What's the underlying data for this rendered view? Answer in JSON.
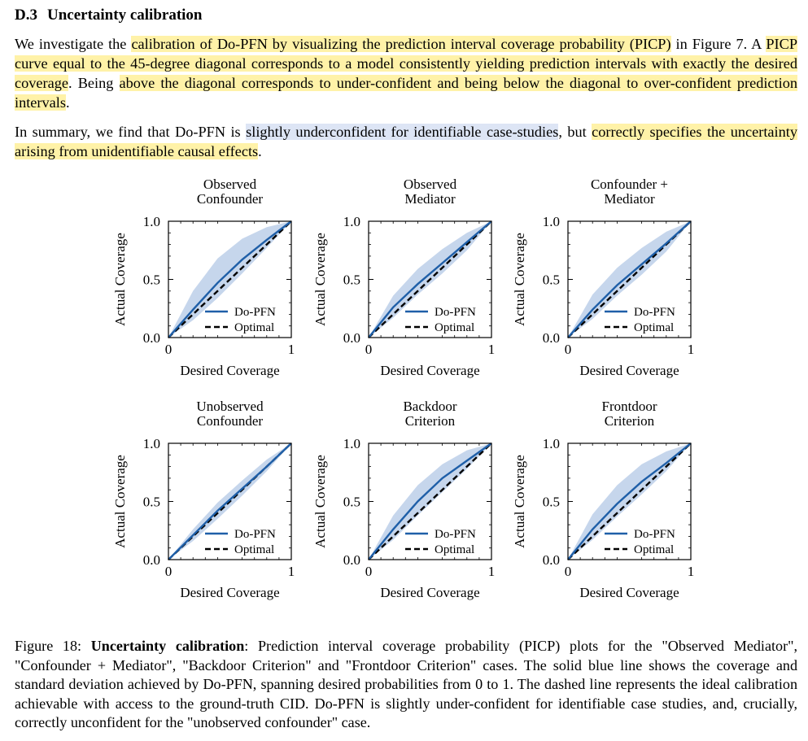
{
  "section": {
    "number": "D.3",
    "title": "Uncertainty calibration"
  },
  "paragraph1": {
    "s1": "We investigate the ",
    "h1": "calibration of Do-PFN by visualizing the prediction interval coverage probability (PICP)",
    "s2": " in Figure 7. A ",
    "h2": "PICP curve equal to the 45-degree diagonal corresponds to a model consistently yielding prediction intervals with exactly the desired coverage",
    "s3": ". Being ",
    "h3": "above the diagonal corresponds to under-confident and being below the diagonal to over-confident prediction intervals",
    "s4": "."
  },
  "paragraph2": {
    "s1": "In summary, we find that Do-PFN is ",
    "h1": "slightly underconfident for identifiable case-studies",
    "s2": ", but ",
    "h2": "correctly specifies the uncertainty arising from unidentifiable causal effects",
    "s3": "."
  },
  "chart_data": [
    {
      "type": "line",
      "title": "Observed\nConfounder",
      "xlabel": "Desired Coverage",
      "ylabel": "Actual Coverage",
      "xlim": [
        0,
        1
      ],
      "ylim": [
        0,
        1
      ],
      "xticks": [
        "0",
        "1"
      ],
      "yticks": [
        "0.0",
        "0.5",
        "1.0"
      ],
      "legend": "lower-right",
      "series": [
        {
          "name": "Do-PFN",
          "color": "#1f5fa8",
          "x": [
            0,
            0.2,
            0.4,
            0.6,
            0.8,
            1.0
          ],
          "y": [
            0,
            0.24,
            0.47,
            0.67,
            0.84,
            1.0
          ],
          "band_lower": [
            0,
            0.15,
            0.34,
            0.55,
            0.77,
            1.0
          ],
          "band_upper": [
            0,
            0.4,
            0.68,
            0.85,
            0.95,
            1.0
          ]
        },
        {
          "name": "Optimal",
          "color": "#000000",
          "style": "dashed",
          "x": [
            0,
            1
          ],
          "y": [
            0,
            1
          ]
        }
      ]
    },
    {
      "type": "line",
      "title": "Observed\nMediator",
      "xlabel": "Desired Coverage",
      "ylabel": "Actual Coverage",
      "xlim": [
        0,
        1
      ],
      "ylim": [
        0,
        1
      ],
      "xticks": [
        "0",
        "1"
      ],
      "yticks": [
        "0.0",
        "0.5",
        "1.0"
      ],
      "legend": "lower-right",
      "series": [
        {
          "name": "Do-PFN",
          "color": "#1f5fa8",
          "x": [
            0,
            0.2,
            0.4,
            0.6,
            0.8,
            1.0
          ],
          "y": [
            0,
            0.26,
            0.46,
            0.64,
            0.82,
            1.0
          ],
          "band_lower": [
            0,
            0.17,
            0.37,
            0.55,
            0.75,
            1.0
          ],
          "band_upper": [
            0,
            0.36,
            0.59,
            0.76,
            0.9,
            1.0
          ]
        },
        {
          "name": "Optimal",
          "color": "#000000",
          "style": "dashed",
          "x": [
            0,
            1
          ],
          "y": [
            0,
            1
          ]
        }
      ]
    },
    {
      "type": "line",
      "title": "Confounder +\nMediator",
      "xlabel": "Desired Coverage",
      "ylabel": "Actual Coverage",
      "xlim": [
        0,
        1
      ],
      "ylim": [
        0,
        1
      ],
      "xticks": [
        "0",
        "1"
      ],
      "yticks": [
        "0.0",
        "0.5",
        "1.0"
      ],
      "legend": "lower-right",
      "series": [
        {
          "name": "Do-PFN",
          "color": "#1f5fa8",
          "x": [
            0,
            0.2,
            0.4,
            0.6,
            0.8,
            1.0
          ],
          "y": [
            0,
            0.24,
            0.45,
            0.63,
            0.81,
            1.0
          ],
          "band_lower": [
            0,
            0.16,
            0.36,
            0.54,
            0.74,
            1.0
          ],
          "band_upper": [
            0,
            0.37,
            0.6,
            0.77,
            0.91,
            1.0
          ]
        },
        {
          "name": "Optimal",
          "color": "#000000",
          "style": "dashed",
          "x": [
            0,
            1
          ],
          "y": [
            0,
            1
          ]
        }
      ]
    },
    {
      "type": "line",
      "title": "Unobserved\nConfounder",
      "xlabel": "Desired Coverage",
      "ylabel": "Actual Coverage",
      "xlim": [
        0,
        1
      ],
      "ylim": [
        0,
        1
      ],
      "xticks": [
        "0",
        "1"
      ],
      "yticks": [
        "0.0",
        "0.5",
        "1.0"
      ],
      "legend": "lower-right",
      "series": [
        {
          "name": "Do-PFN",
          "color": "#1f5fa8",
          "x": [
            0,
            0.2,
            0.4,
            0.6,
            0.8,
            1.0
          ],
          "y": [
            0,
            0.21,
            0.42,
            0.61,
            0.8,
            1.0
          ],
          "band_lower": [
            0,
            0.16,
            0.35,
            0.55,
            0.76,
            1.0
          ],
          "band_upper": [
            0,
            0.26,
            0.49,
            0.68,
            0.86,
            1.0
          ]
        },
        {
          "name": "Optimal",
          "color": "#000000",
          "style": "dashed",
          "x": [
            0,
            1
          ],
          "y": [
            0,
            1
          ]
        }
      ]
    },
    {
      "type": "line",
      "title": "Backdoor\nCriterion",
      "xlabel": "Desired Coverage",
      "ylabel": "Actual Coverage",
      "xlim": [
        0,
        1
      ],
      "ylim": [
        0,
        1
      ],
      "xticks": [
        "0",
        "1"
      ],
      "yticks": [
        "0.0",
        "0.5",
        "1.0"
      ],
      "legend": "lower-right",
      "series": [
        {
          "name": "Do-PFN",
          "color": "#1f5fa8",
          "x": [
            0,
            0.2,
            0.4,
            0.6,
            0.8,
            1.0
          ],
          "y": [
            0,
            0.26,
            0.5,
            0.7,
            0.85,
            1.0
          ],
          "band_lower": [
            0,
            0.17,
            0.38,
            0.58,
            0.78,
            1.0
          ],
          "band_upper": [
            0,
            0.38,
            0.64,
            0.82,
            0.94,
            1.0
          ]
        },
        {
          "name": "Optimal",
          "color": "#000000",
          "style": "dashed",
          "x": [
            0,
            1
          ],
          "y": [
            0,
            1
          ]
        }
      ]
    },
    {
      "type": "line",
      "title": "Frontdoor\nCriterion",
      "xlabel": "Desired Coverage",
      "ylabel": "Actual Coverage",
      "xlim": [
        0,
        1
      ],
      "ylim": [
        0,
        1
      ],
      "xticks": [
        "0",
        "1"
      ],
      "yticks": [
        "0.0",
        "0.5",
        "1.0"
      ],
      "legend": "lower-right",
      "series": [
        {
          "name": "Do-PFN",
          "color": "#1f5fa8",
          "x": [
            0,
            0.2,
            0.4,
            0.6,
            0.8,
            1.0
          ],
          "y": [
            0,
            0.26,
            0.48,
            0.67,
            0.83,
            1.0
          ],
          "band_lower": [
            0,
            0.17,
            0.37,
            0.56,
            0.76,
            1.0
          ],
          "band_upper": [
            0,
            0.39,
            0.64,
            0.82,
            0.93,
            1.0
          ]
        },
        {
          "name": "Optimal",
          "color": "#000000",
          "style": "dashed",
          "x": [
            0,
            1
          ],
          "y": [
            0,
            1
          ]
        }
      ]
    }
  ],
  "caption": {
    "label": "Figure 18: ",
    "bold": "Uncertainty calibration",
    "text": ": Prediction interval coverage probability (PICP) plots for the \"Observed Mediator\", \"Confounder + Mediator\", \"Backdoor Criterion\" and \"Frontdoor Criterion\" cases. The solid blue line shows the coverage and standard deviation achieved by Do-PFN, spanning desired probabilities from 0 to 1. The dashed line represents the ideal calibration achievable with access to the ground-truth CID. Do-PFN is slightly under-confident for identifiable case studies, and, crucially, correctly unconfident for the \"unobserved confounder\" case."
  },
  "colors": {
    "highlight_yellow": "#fff2a8",
    "highlight_blue": "#dde5f5",
    "band": "#c6d6ec"
  }
}
